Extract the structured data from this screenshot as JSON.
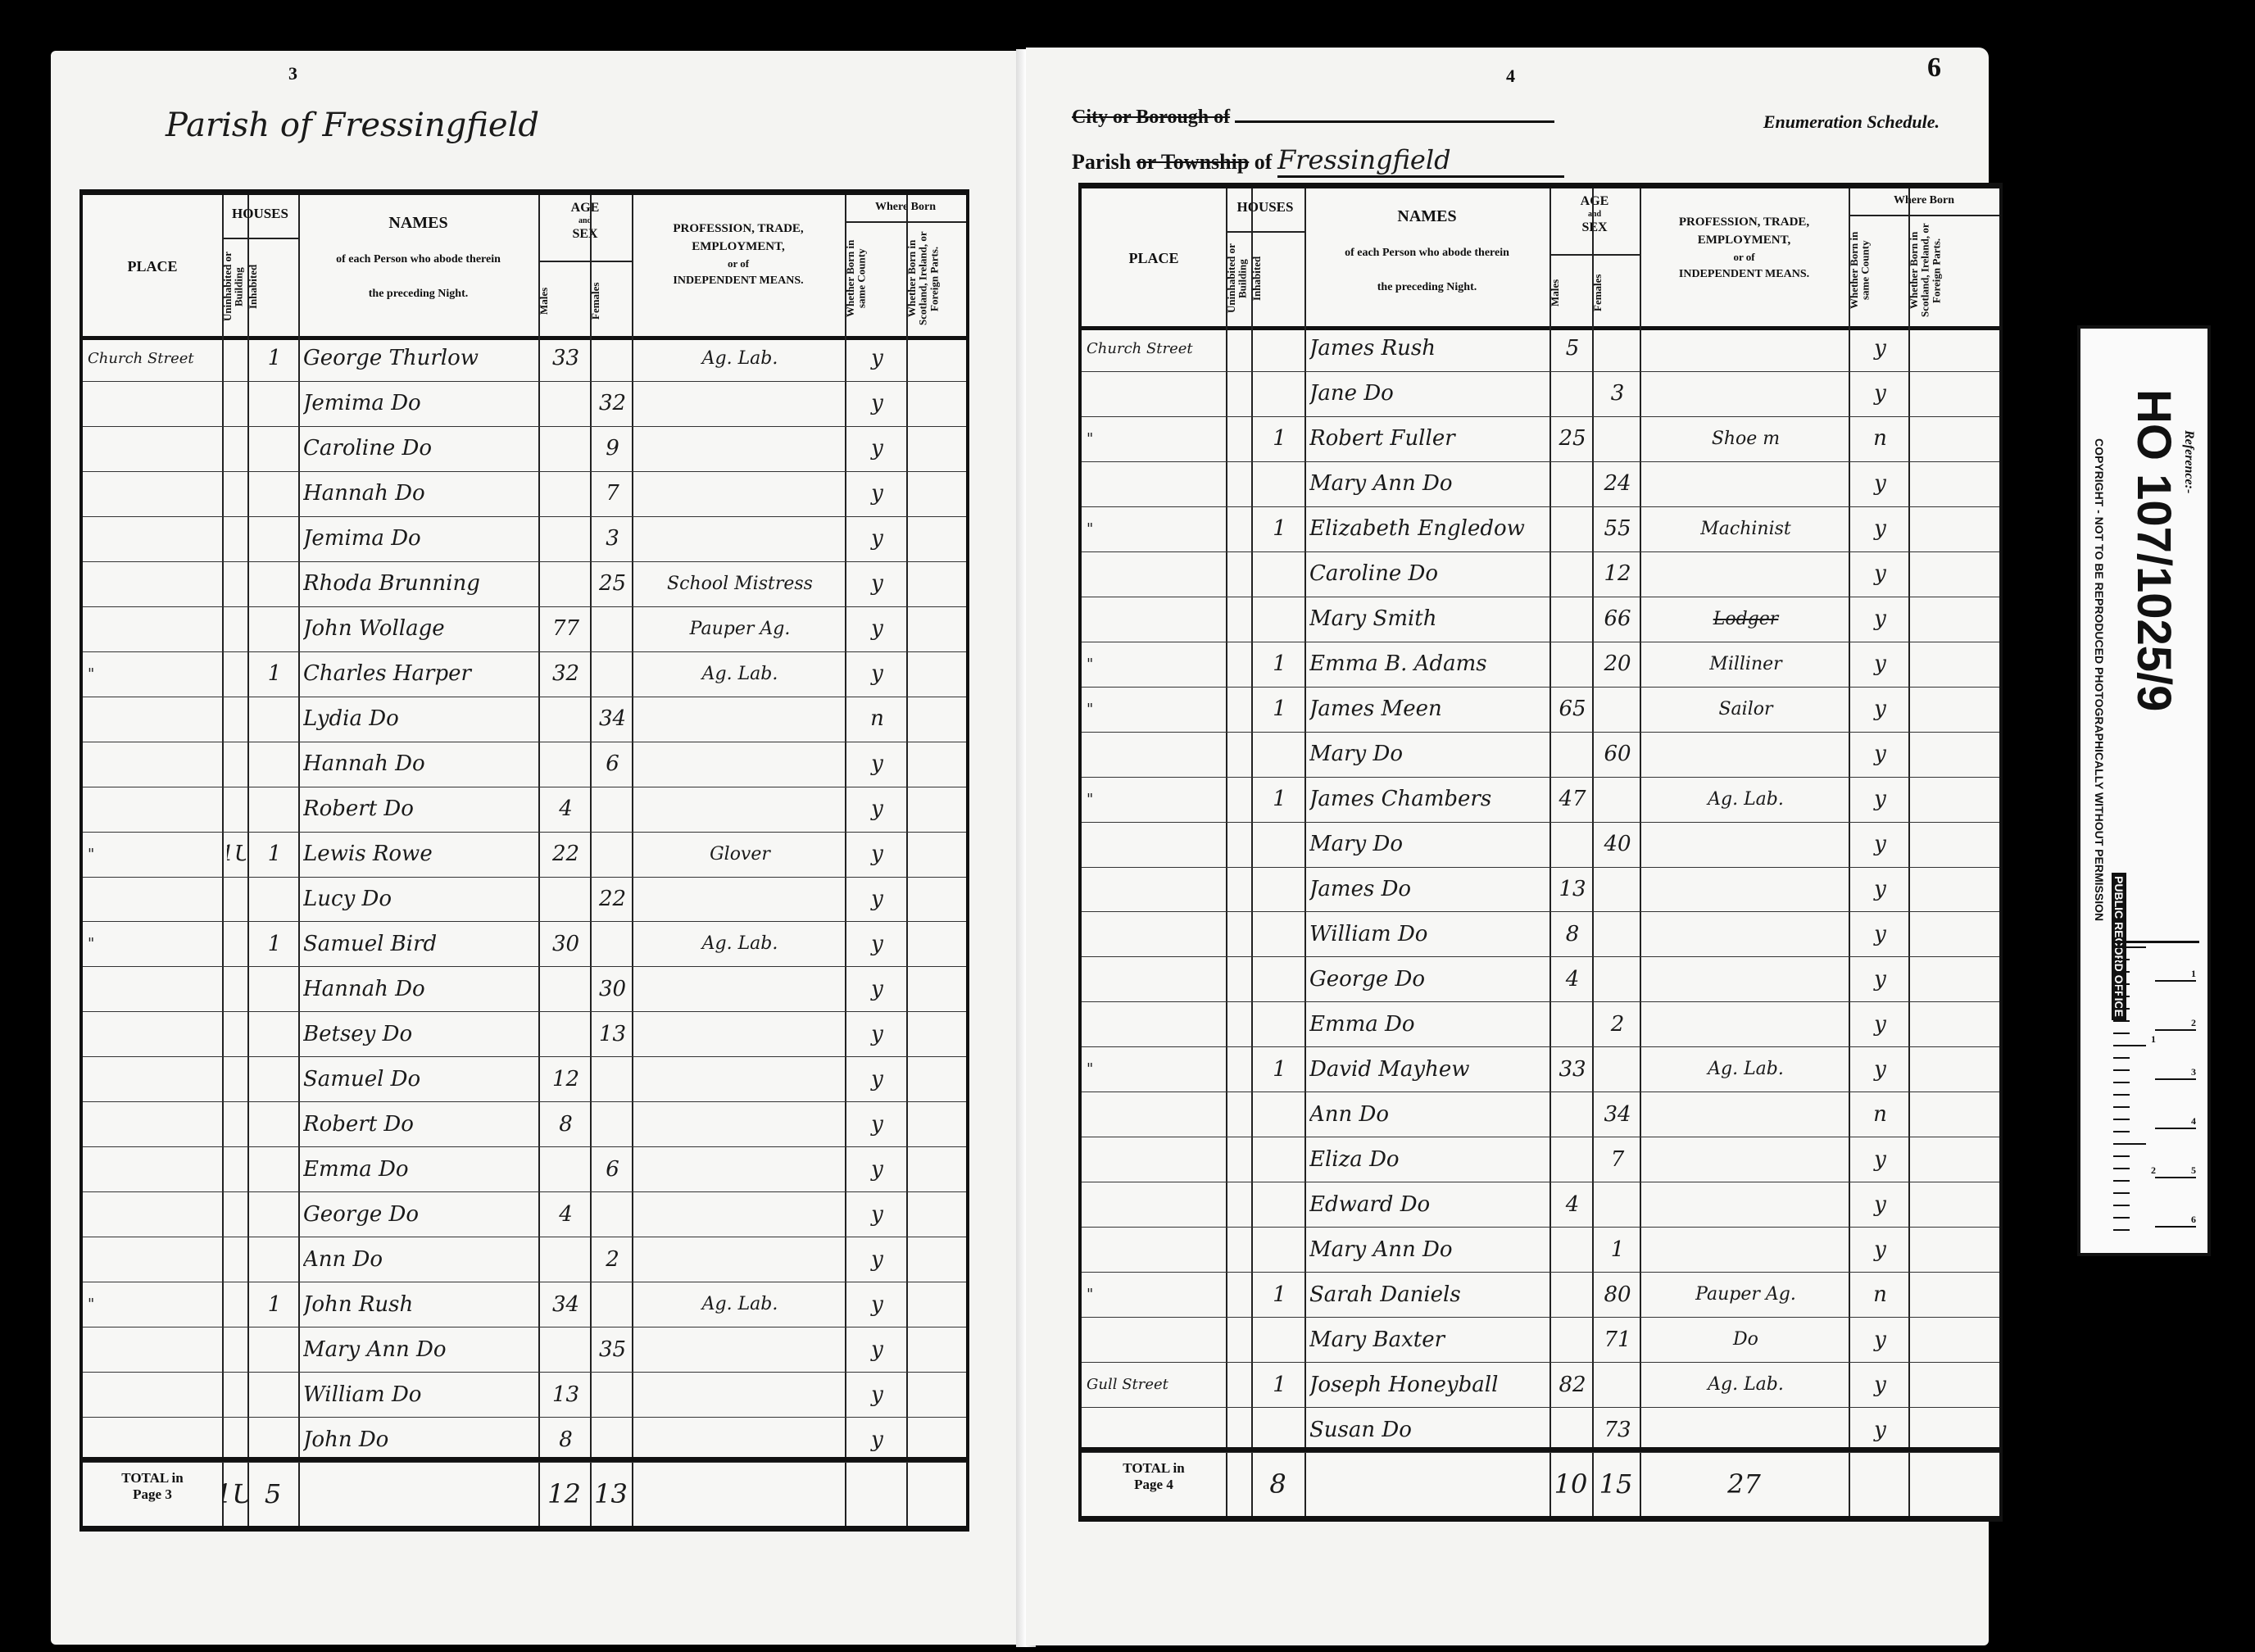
{
  "left_page": {
    "page_number": "3",
    "parish_line": "Parish of Fressingfield",
    "headers": {
      "place": "PLACE",
      "houses": "HOUSES",
      "uninhabited": "Uninhabited or Building",
      "inhabited": "Inhabited",
      "names": "NAMES",
      "names_sub1": "of each Person who abode therein",
      "names_sub2": "the preceding Night.",
      "age": "AGE",
      "age_and": "and",
      "sex": "SEX",
      "males": "Males",
      "females": "Females",
      "profession1": "PROFESSION, TRADE,",
      "profession2": "EMPLOYMENT,",
      "profession3": "or of",
      "profession4": "INDEPENDENT MEANS.",
      "where_born": "Where Born",
      "born_county": "Whether Born in same County",
      "born_foreign": "Whether Born in Scotland, Ireland, or Foreign Parts."
    },
    "rows": [
      {
        "place": "Church Street",
        "uninhabited": "",
        "inhabited": "1",
        "name": "George Thurlow",
        "male": "33",
        "female": "",
        "occupation": "Ag. Lab.",
        "county": "y",
        "foreign": ""
      },
      {
        "place": "",
        "uninhabited": "",
        "inhabited": "",
        "name": "Jemima Do",
        "male": "",
        "female": "32",
        "occupation": "",
        "county": "y",
        "foreign": ""
      },
      {
        "place": "",
        "uninhabited": "",
        "inhabited": "",
        "name": "Caroline Do",
        "male": "",
        "female": "9",
        "occupation": "",
        "county": "y",
        "foreign": ""
      },
      {
        "place": "",
        "uninhabited": "",
        "inhabited": "",
        "name": "Hannah Do",
        "male": "",
        "female": "7",
        "occupation": "",
        "county": "y",
        "foreign": ""
      },
      {
        "place": "",
        "uninhabited": "",
        "inhabited": "",
        "name": "Jemima Do",
        "male": "",
        "female": "3",
        "occupation": "",
        "county": "y",
        "foreign": ""
      },
      {
        "place": "",
        "uninhabited": "",
        "inhabited": "",
        "name": "Rhoda Brunning",
        "male": "",
        "female": "25",
        "occupation": "School Mistress",
        "county": "y",
        "foreign": ""
      },
      {
        "place": "",
        "uninhabited": "",
        "inhabited": "",
        "name": "John Wollage",
        "male": "77",
        "female": "",
        "occupation": "Pauper Ag.",
        "county": "y",
        "foreign": ""
      },
      {
        "place": "\"",
        "uninhabited": "",
        "inhabited": "1",
        "name": "Charles Harper",
        "male": "32",
        "female": "",
        "occupation": "Ag. Lab.",
        "county": "y",
        "foreign": ""
      },
      {
        "place": "",
        "uninhabited": "",
        "inhabited": "",
        "name": "Lydia Do",
        "male": "",
        "female": "34",
        "occupation": "",
        "county": "n",
        "foreign": ""
      },
      {
        "place": "",
        "uninhabited": "",
        "inhabited": "",
        "name": "Hannah Do",
        "male": "",
        "female": "6",
        "occupation": "",
        "county": "y",
        "foreign": ""
      },
      {
        "place": "",
        "uninhabited": "",
        "inhabited": "",
        "name": "Robert Do",
        "male": "4",
        "female": "",
        "occupation": "",
        "county": "y",
        "foreign": ""
      },
      {
        "place": "\"",
        "uninhabited": "1U",
        "inhabited": "1",
        "name": "Lewis Rowe",
        "male": "22",
        "female": "",
        "occupation": "Glover",
        "county": "y",
        "foreign": ""
      },
      {
        "place": "",
        "uninhabited": "",
        "inhabited": "",
        "name": "Lucy Do",
        "male": "",
        "female": "22",
        "occupation": "",
        "county": "y",
        "foreign": ""
      },
      {
        "place": "\"",
        "uninhabited": "",
        "inhabited": "1",
        "name": "Samuel Bird",
        "male": "30",
        "female": "",
        "occupation": "Ag. Lab.",
        "county": "y",
        "foreign": ""
      },
      {
        "place": "",
        "uninhabited": "",
        "inhabited": "",
        "name": "Hannah Do",
        "male": "",
        "female": "30",
        "occupation": "",
        "county": "y",
        "foreign": ""
      },
      {
        "place": "",
        "uninhabited": "",
        "inhabited": "",
        "name": "Betsey Do",
        "male": "",
        "female": "13",
        "occupation": "",
        "county": "y",
        "foreign": ""
      },
      {
        "place": "",
        "uninhabited": "",
        "inhabited": "",
        "name": "Samuel Do",
        "male": "12",
        "female": "",
        "occupation": "",
        "county": "y",
        "foreign": ""
      },
      {
        "place": "",
        "uninhabited": "",
        "inhabited": "",
        "name": "Robert Do",
        "male": "8",
        "female": "",
        "occupation": "",
        "county": "y",
        "foreign": ""
      },
      {
        "place": "",
        "uninhabited": "",
        "inhabited": "",
        "name": "Emma Do",
        "male": "",
        "female": "6",
        "occupation": "",
        "county": "y",
        "foreign": ""
      },
      {
        "place": "",
        "uninhabited": "",
        "inhabited": "",
        "name": "George Do",
        "male": "4",
        "female": "",
        "occupation": "",
        "county": "y",
        "foreign": ""
      },
      {
        "place": "",
        "uninhabited": "",
        "inhabited": "",
        "name": "Ann Do",
        "male": "",
        "female": "2",
        "occupation": "",
        "county": "y",
        "foreign": ""
      },
      {
        "place": "\"",
        "uninhabited": "",
        "inhabited": "1",
        "name": "John Rush",
        "male": "34",
        "female": "",
        "occupation": "Ag. Lab.",
        "county": "y",
        "foreign": ""
      },
      {
        "place": "",
        "uninhabited": "",
        "inhabited": "",
        "name": "Mary Ann Do",
        "male": "",
        "female": "35",
        "occupation": "",
        "county": "y",
        "foreign": ""
      },
      {
        "place": "",
        "uninhabited": "",
        "inhabited": "",
        "name": "William Do",
        "male": "13",
        "female": "",
        "occupation": "",
        "county": "y",
        "foreign": ""
      },
      {
        "place": "",
        "uninhabited": "",
        "inhabited": "",
        "name": "John Do",
        "male": "8",
        "female": "",
        "occupation": "",
        "county": "y",
        "foreign": ""
      }
    ],
    "total": {
      "label1": "TOTAL in",
      "label2": "Page 3",
      "uninhabited": "1U",
      "inhabited": "5",
      "males": "12",
      "females": "13",
      "occupation": ""
    }
  },
  "right_page": {
    "page_number": "4",
    "folio_number": "6",
    "city_line": "City or Borough of",
    "parish_label": "Parish",
    "township_struck": "or Township",
    "of_label": "of",
    "parish_value": "Fressingfield",
    "schedule_title": "Enumeration Schedule.",
    "rows": [
      {
        "place": "Church Street",
        "uninhabited": "",
        "inhabited": "",
        "name": "James Rush",
        "male": "5",
        "female": "",
        "occupation": "",
        "county": "y",
        "foreign": ""
      },
      {
        "place": "",
        "uninhabited": "",
        "inhabited": "",
        "name": "Jane Do",
        "male": "",
        "female": "3",
        "occupation": "",
        "county": "y",
        "foreign": ""
      },
      {
        "place": "\"",
        "uninhabited": "",
        "inhabited": "1",
        "name": "Robert Fuller",
        "male": "25",
        "female": "",
        "occupation": "Shoe m",
        "county": "n",
        "foreign": ""
      },
      {
        "place": "",
        "uninhabited": "",
        "inhabited": "",
        "name": "Mary Ann Do",
        "male": "",
        "female": "24",
        "occupation": "",
        "county": "y",
        "foreign": ""
      },
      {
        "place": "\"",
        "uninhabited": "",
        "inhabited": "1",
        "name": "Elizabeth Engledow",
        "male": "",
        "female": "55",
        "occupation": "Machinist",
        "county": "y",
        "foreign": ""
      },
      {
        "place": "",
        "uninhabited": "",
        "inhabited": "",
        "name": "Caroline Do",
        "male": "",
        "female": "12",
        "occupation": "",
        "county": "y",
        "foreign": ""
      },
      {
        "place": "",
        "uninhabited": "",
        "inhabited": "",
        "name": "Mary Smith",
        "male": "",
        "female": "66",
        "occupation": "Lodger",
        "county": "y",
        "foreign": "",
        "struck": true
      },
      {
        "place": "\"",
        "uninhabited": "",
        "inhabited": "1",
        "name": "Emma B. Adams",
        "male": "",
        "female": "20",
        "occupation": "Milliner",
        "county": "y",
        "foreign": ""
      },
      {
        "place": "\"",
        "uninhabited": "",
        "inhabited": "1",
        "name": "James Meen",
        "male": "65",
        "female": "",
        "occupation": "Sailor",
        "county": "y",
        "foreign": ""
      },
      {
        "place": "",
        "uninhabited": "",
        "inhabited": "",
        "name": "Mary Do",
        "male": "",
        "female": "60",
        "occupation": "",
        "county": "y",
        "foreign": ""
      },
      {
        "place": "\"",
        "uninhabited": "",
        "inhabited": "1",
        "name": "James Chambers",
        "male": "47",
        "female": "",
        "occupation": "Ag. Lab.",
        "county": "y",
        "foreign": ""
      },
      {
        "place": "",
        "uninhabited": "",
        "inhabited": "",
        "name": "Mary Do",
        "male": "",
        "female": "40",
        "occupation": "",
        "county": "y",
        "foreign": ""
      },
      {
        "place": "",
        "uninhabited": "",
        "inhabited": "",
        "name": "James Do",
        "male": "13",
        "female": "",
        "occupation": "",
        "county": "y",
        "foreign": ""
      },
      {
        "place": "",
        "uninhabited": "",
        "inhabited": "",
        "name": "William Do",
        "male": "8",
        "female": "",
        "occupation": "",
        "county": "y",
        "foreign": ""
      },
      {
        "place": "",
        "uninhabited": "",
        "inhabited": "",
        "name": "George Do",
        "male": "4",
        "female": "",
        "occupation": "",
        "county": "y",
        "foreign": ""
      },
      {
        "place": "",
        "uninhabited": "",
        "inhabited": "",
        "name": "Emma Do",
        "male": "",
        "female": "2",
        "occupation": "",
        "county": "y",
        "foreign": ""
      },
      {
        "place": "\"",
        "uninhabited": "",
        "inhabited": "1",
        "name": "David Mayhew",
        "male": "33",
        "female": "",
        "occupation": "Ag. Lab.",
        "county": "y",
        "foreign": ""
      },
      {
        "place": "",
        "uninhabited": "",
        "inhabited": "",
        "name": "Ann Do",
        "male": "",
        "female": "34",
        "occupation": "",
        "county": "n",
        "foreign": ""
      },
      {
        "place": "",
        "uninhabited": "",
        "inhabited": "",
        "name": "Eliza Do",
        "male": "",
        "female": "7",
        "occupation": "",
        "county": "y",
        "foreign": ""
      },
      {
        "place": "",
        "uninhabited": "",
        "inhabited": "",
        "name": "Edward Do",
        "male": "4",
        "female": "",
        "occupation": "",
        "county": "y",
        "foreign": ""
      },
      {
        "place": "",
        "uninhabited": "",
        "inhabited": "",
        "name": "Mary Ann Do",
        "male": "",
        "female": "1",
        "occupation": "",
        "county": "y",
        "foreign": ""
      },
      {
        "place": "\"",
        "uninhabited": "",
        "inhabited": "1",
        "name": "Sarah Daniels",
        "male": "",
        "female": "80",
        "occupation": "Pauper Ag.",
        "county": "n",
        "foreign": ""
      },
      {
        "place": "",
        "uninhabited": "",
        "inhabited": "",
        "name": "Mary Baxter",
        "male": "",
        "female": "71",
        "occupation": "Do",
        "county": "y",
        "foreign": ""
      },
      {
        "place": "Gull Street",
        "uninhabited": "",
        "inhabited": "1",
        "name": "Joseph Honeyball",
        "male": "82",
        "female": "",
        "occupation": "Ag. Lab.",
        "county": "y",
        "foreign": ""
      },
      {
        "place": "",
        "uninhabited": "",
        "inhabited": "",
        "name": "Susan Do",
        "male": "",
        "female": "73",
        "occupation": "",
        "county": "y",
        "foreign": ""
      }
    ],
    "total": {
      "label1": "TOTAL in",
      "label2": "Page 4",
      "uninhabited": "",
      "inhabited": "8",
      "males": "10",
      "females": "15",
      "occupation": "27"
    }
  },
  "reference_strip": {
    "reference_label": "Reference:-",
    "reference": "HO 107/1025/9",
    "office": "PUBLIC RECORD OFFICE",
    "copyright": "COPYRIGHT - NOT TO BE REPRODUCED PHOTOGRAPHICALLY WITHOUT PERMISSION",
    "scale_cm": [
      "1",
      "2",
      "3",
      "4",
      "5",
      "6"
    ],
    "scale_in": [
      "1",
      "2"
    ]
  }
}
